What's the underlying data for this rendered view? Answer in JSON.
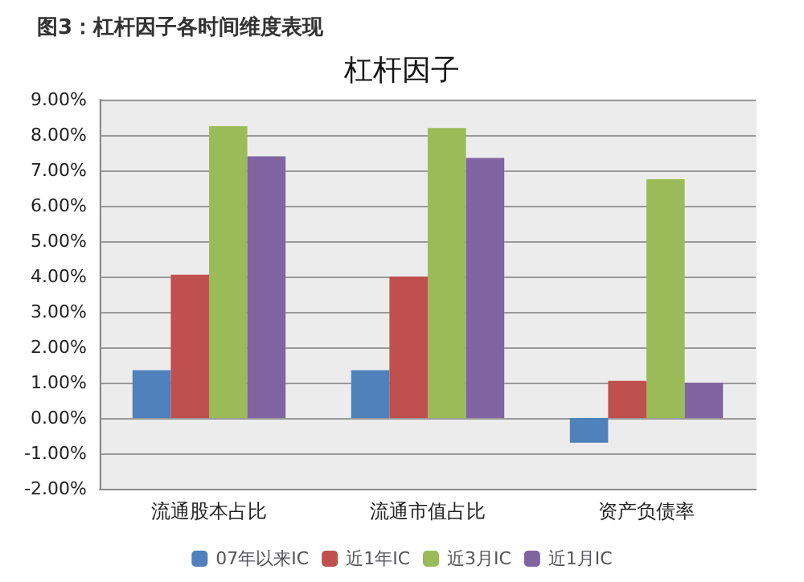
{
  "chart_data": {
    "type": "bar",
    "title": "图3：杠杆因子各时间维度表现",
    "subtitle": "杠杆因子",
    "categories": [
      "流通股本占比",
      "流通市值占比",
      "资产负债率"
    ],
    "series": [
      {
        "name": "07年以来IC",
        "color": "#4f81bd",
        "values": [
          1.35,
          1.35,
          -0.7
        ]
      },
      {
        "name": "近1年IC",
        "color": "#c0504d",
        "values": [
          4.05,
          4.0,
          1.05
        ]
      },
      {
        "name": "近3月IC",
        "color": "#9bbb59",
        "values": [
          8.25,
          8.2,
          6.75
        ]
      },
      {
        "name": "近1月IC",
        "color": "#8064a2",
        "values": [
          7.4,
          7.35,
          1.0
        ]
      }
    ],
    "ylim": [
      -2,
      9
    ],
    "yticks": [
      {
        "value": -2,
        "label": "-2.00%"
      },
      {
        "value": -1,
        "label": "-1.00%"
      },
      {
        "value": 0,
        "label": "0.00%"
      },
      {
        "value": 1,
        "label": "1.00%"
      },
      {
        "value": 2,
        "label": "2.00%"
      },
      {
        "value": 3,
        "label": "3.00%"
      },
      {
        "value": 4,
        "label": "4.00%"
      },
      {
        "value": 5,
        "label": "5.00%"
      },
      {
        "value": 6,
        "label": "6.00%"
      },
      {
        "value": 7,
        "label": "7.00%"
      },
      {
        "value": 8,
        "label": "8.00%"
      },
      {
        "value": 9,
        "label": "9.00%"
      }
    ],
    "grid": true,
    "legend": "bottom"
  }
}
